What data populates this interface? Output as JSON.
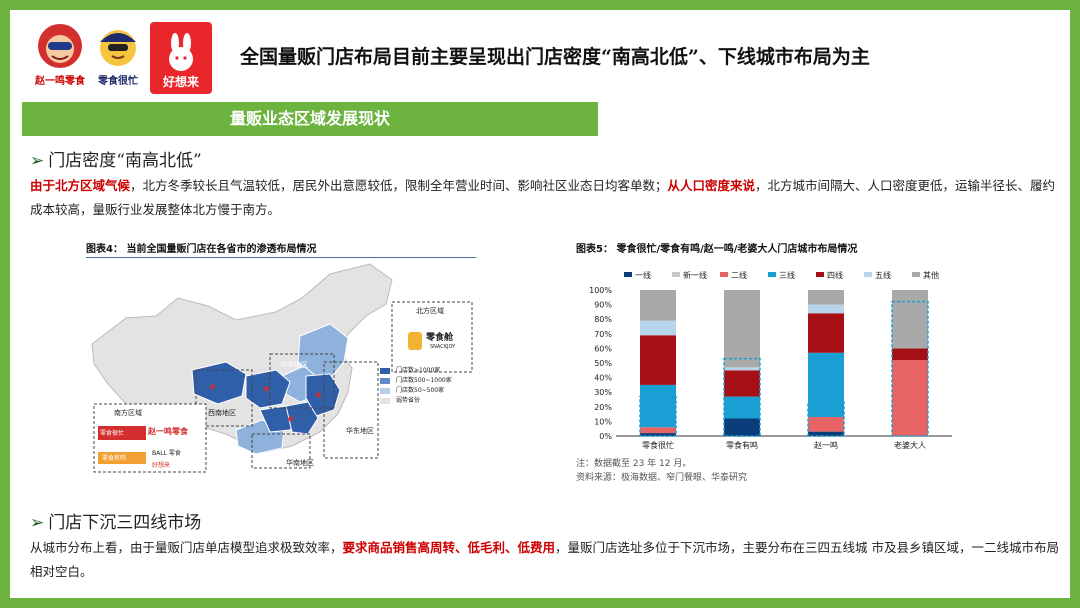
{
  "logos": [
    {
      "name": "zhaoyiming",
      "label": "赵一鸣零食"
    },
    {
      "name": "lingshihenmang",
      "label": "零食很忙"
    },
    {
      "name": "haoxianglai",
      "label": "好想来"
    }
  ],
  "title": "全国量贩门店布局目前主要呈现出门店密度“南高北低”、下线城市布局为主",
  "banner": "量贩业态区域发展现状",
  "section1": {
    "heading": "门店密度“南高北低”",
    "parts": [
      {
        "t": "由于北方区域气候",
        "hl": true
      },
      {
        "t": "，北方冬季较长且气温较低，居民外出意愿较低，限制全年营业时间、影响社区业态日均客单数；",
        "hl": false
      },
      {
        "t": "从人口密度来说",
        "hl": true
      },
      {
        "t": "，北方城市间隔大、人口密度更低，运输半径长、履约成本较高，量贩行业发展整体北方慢于南方。",
        "hl": false
      }
    ]
  },
  "fig4": {
    "title": "图表4：  当前全国量贩门店在各省市的渗透布局情况",
    "legend": [
      "门店数≥1000家",
      "门店数500~1000家",
      "门店数50~500家",
      "弱势省份"
    ],
    "regions": {
      "north": "北方区域",
      "north_brand": "零食舱",
      "north_brand_en": "SNACKJOY",
      "central": "华中地区",
      "southwest": "西南地区",
      "east": "华东地区",
      "south": "华南地区",
      "southern": "南方区域",
      "south_brand1": "赵一鸣零食",
      "south_brand2": "零食很忙",
      "south_brand3": "零食有鸣",
      "south_brand4": "BALL 零食",
      "south_brand5": "好想来"
    }
  },
  "fig5": {
    "title": "图表5：  零食很忙/零食有鸣/赵一鸣/老婆大人门店城市布局情况",
    "note": "注：数据截至 23 年 12 月。",
    "source": "资料来源：极海数据、窄门餐眼、华泰研究"
  },
  "chart_data": {
    "type": "bar",
    "stacked": true,
    "categories": [
      "零食很忙",
      "零食有鸣",
      "赵一鸣",
      "老婆大人"
    ],
    "ylim": [
      0,
      100
    ],
    "yticks": [
      "0%",
      "10%",
      "20%",
      "30%",
      "40%",
      "50%",
      "60%",
      "70%",
      "80%",
      "90%",
      "100%"
    ],
    "series": [
      {
        "name": "一线",
        "color": "#0a3d7a",
        "values": [
          2,
          12,
          3,
          0
        ]
      },
      {
        "name": "新一线",
        "color": "#c8c8c8",
        "values": [
          0,
          0,
          0,
          0
        ]
      },
      {
        "name": "二线",
        "color": "#e86464",
        "values": [
          4,
          0,
          10,
          52
        ]
      },
      {
        "name": "三线",
        "color": "#1a9fd4",
        "values": [
          29,
          15,
          44,
          0
        ]
      },
      {
        "name": "四线",
        "color": "#a50f15",
        "values": [
          34,
          18,
          27,
          8
        ]
      },
      {
        "name": "五线",
        "color": "#b8d4ea",
        "values": [
          10,
          2,
          6,
          0
        ]
      },
      {
        "name": "其他",
        "color": "#a9a9a9",
        "values": [
          21,
          53,
          10,
          40
        ]
      }
    ],
    "dashed_boxes": [
      {
        "bar": 0,
        "from": 0,
        "to": 27
      },
      {
        "bar": 1,
        "from": 0,
        "to": 53
      },
      {
        "bar": 2,
        "from": 0,
        "to": 23
      },
      {
        "bar": 3,
        "from": 0,
        "to": 92
      }
    ]
  },
  "section2": {
    "heading": "门店下沉三四线市场",
    "parts": [
      {
        "t": "从城市分布上看，由于量贩门店单店模型追求极致效率，",
        "hl": false
      },
      {
        "t": "要求商品销售高周转、低毛利、低费用",
        "hl": true
      },
      {
        "t": "，量贩门店选址多位于下沉市场，主要分布在三四五线城 市及县乡镇区域，一二线城市布局相对空白。",
        "hl": false
      }
    ]
  }
}
